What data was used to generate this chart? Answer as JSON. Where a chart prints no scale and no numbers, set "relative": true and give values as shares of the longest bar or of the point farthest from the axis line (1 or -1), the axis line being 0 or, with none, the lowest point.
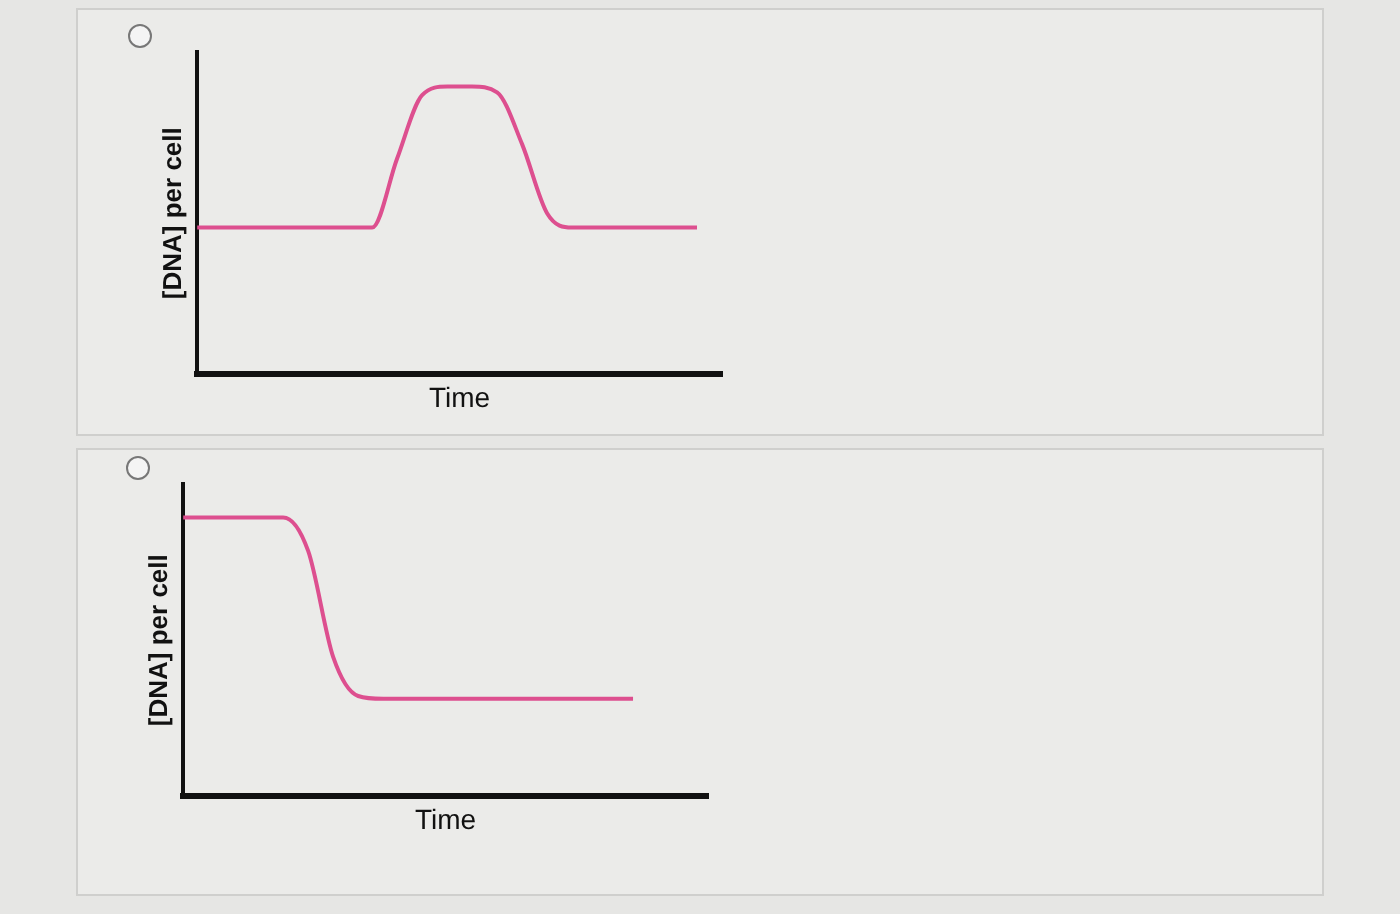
{
  "chart_data": [
    {
      "type": "line",
      "xlabel": "Time",
      "ylabel": "[DNA] per cell",
      "relative": true,
      "categories": [
        null,
        null,
        null,
        null,
        null,
        null,
        null,
        null,
        null,
        null,
        null,
        null,
        null,
        null,
        null,
        null,
        null,
        null,
        null,
        null,
        null,
        null
      ],
      "series": [
        {
          "color": "#dd4f8f",
          "values": [
            0.51,
            0.51,
            0.51,
            0.51,
            0.51,
            0.51,
            0.51,
            0.51,
            0.75,
            0.97,
            1,
            1,
            0.98,
            0.8,
            0.56,
            0.51,
            0.51,
            0.51,
            0.51,
            0.51,
            0.51,
            null
          ]
        }
      ]
    },
    {
      "type": "line",
      "xlabel": "Time",
      "ylabel": "[DNA] per cell",
      "relative": true,
      "categories": [
        null,
        null,
        null,
        null,
        null,
        null,
        null,
        null,
        null,
        null,
        null,
        null,
        null,
        null,
        null,
        null,
        null,
        null,
        null,
        null,
        null,
        null
      ],
      "series": [
        {
          "color": "#dd4f8f",
          "values": [
            1,
            1,
            1,
            1,
            1,
            0.88,
            0.5,
            0.36,
            0.35,
            0.35,
            0.35,
            0.35,
            0.35,
            0.35,
            0.35,
            0.35,
            0.35,
            0.35,
            0.35,
            null,
            null,
            null
          ]
        }
      ]
    }
  ]
}
